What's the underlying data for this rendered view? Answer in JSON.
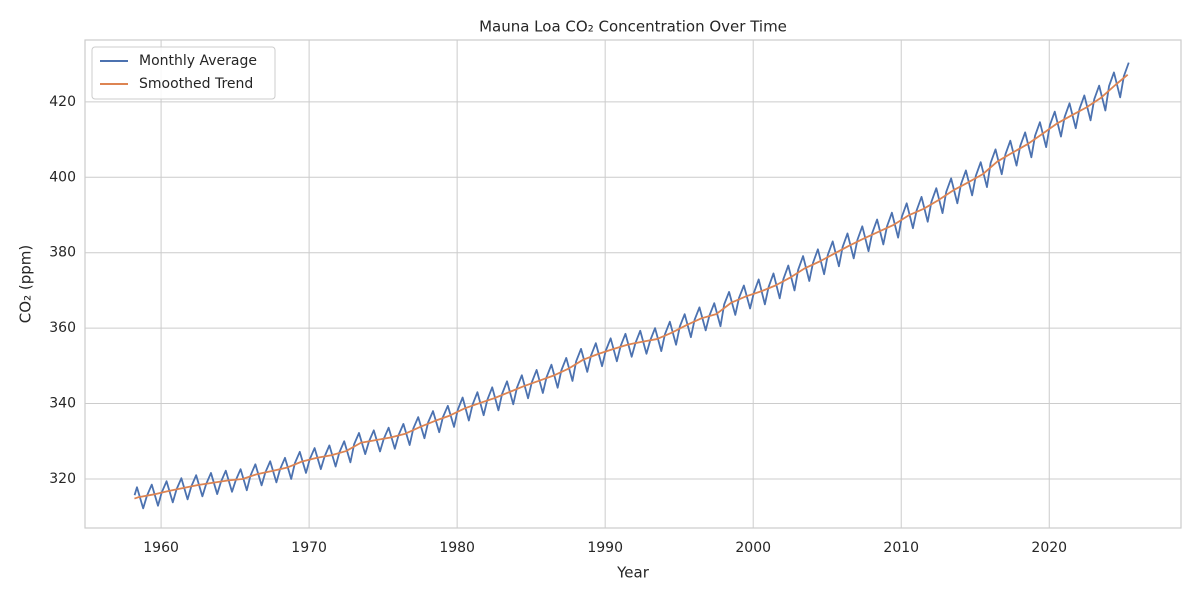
{
  "chart_data": {
    "type": "line",
    "title": "Mauna Loa CO₂ Concentration Over Time",
    "x_label": "Year",
    "y_label": "CO₂ (ppm)",
    "xlim": [
      1954.86,
      2028.9
    ],
    "xticks": [
      1960,
      1970,
      1980,
      1990,
      2000,
      2010,
      2020
    ],
    "ylim": [
      307.0,
      436.4
    ],
    "yticks": [
      320,
      340,
      360,
      380,
      400,
      420
    ],
    "grid": true,
    "legend": "upper left",
    "series": [
      {
        "name": "Monthly Average",
        "color": "#4c72b0",
        "x": [
          1958.21,
          1958.37,
          1958.79,
          1959.04,
          1959.37,
          1959.79,
          1960.04,
          1960.37,
          1960.79,
          1961.04,
          1961.37,
          1961.79,
          1962.04,
          1962.37,
          1962.79,
          1963.04,
          1963.37,
          1963.79,
          1964.04,
          1964.37,
          1964.79,
          1965.04,
          1965.37,
          1965.79,
          1966.04,
          1966.37,
          1966.79,
          1967.04,
          1967.37,
          1967.79,
          1968.04,
          1968.37,
          1968.79,
          1969.04,
          1969.37,
          1969.79,
          1970.04,
          1970.37,
          1970.79,
          1971.04,
          1971.37,
          1971.79,
          1972.04,
          1972.37,
          1972.79,
          1973.04,
          1973.37,
          1973.79,
          1974.04,
          1974.37,
          1974.79,
          1975.04,
          1975.37,
          1975.79,
          1976.04,
          1976.37,
          1976.79,
          1977.04,
          1977.37,
          1977.79,
          1978.04,
          1978.37,
          1978.79,
          1979.04,
          1979.37,
          1979.79,
          1980.04,
          1980.37,
          1980.79,
          1981.04,
          1981.37,
          1981.79,
          1982.04,
          1982.37,
          1982.79,
          1983.04,
          1983.37,
          1983.79,
          1984.04,
          1984.37,
          1984.79,
          1985.04,
          1985.37,
          1985.79,
          1986.04,
          1986.37,
          1986.79,
          1987.04,
          1987.37,
          1987.79,
          1988.04,
          1988.37,
          1988.79,
          1989.04,
          1989.37,
          1989.79,
          1990.04,
          1990.37,
          1990.79,
          1991.04,
          1991.37,
          1991.79,
          1992.04,
          1992.37,
          1992.79,
          1993.04,
          1993.37,
          1993.79,
          1994.04,
          1994.37,
          1994.79,
          1995.04,
          1995.37,
          1995.79,
          1996.04,
          1996.37,
          1996.79,
          1997.04,
          1997.37,
          1997.79,
          1998.04,
          1998.37,
          1998.79,
          1999.04,
          1999.37,
          1999.79,
          2000.04,
          2000.37,
          2000.79,
          2001.04,
          2001.37,
          2001.79,
          2002.04,
          2002.37,
          2002.79,
          2003.04,
          2003.37,
          2003.79,
          2004.04,
          2004.37,
          2004.79,
          2005.04,
          2005.37,
          2005.79,
          2006.04,
          2006.37,
          2006.79,
          2007.04,
          2007.37,
          2007.79,
          2008.04,
          2008.37,
          2008.79,
          2009.04,
          2009.37,
          2009.79,
          2010.04,
          2010.37,
          2010.79,
          2011.04,
          2011.37,
          2011.79,
          2012.04,
          2012.37,
          2012.79,
          2013.04,
          2013.37,
          2013.79,
          2014.04,
          2014.37,
          2014.79,
          2015.04,
          2015.37,
          2015.79,
          2016.04,
          2016.37,
          2016.79,
          2017.04,
          2017.37,
          2017.79,
          2018.04,
          2018.37,
          2018.79,
          2019.04,
          2019.37,
          2019.79,
          2020.04,
          2020.37,
          2020.79,
          2021.04,
          2021.37,
          2021.79,
          2022.04,
          2022.37,
          2022.79,
          2023.04,
          2023.37,
          2023.79,
          2024.04,
          2024.37,
          2024.79,
          2025.04,
          2025.37
        ],
        "values": [
          315.7,
          317.8,
          312.2,
          315.5,
          318.5,
          312.9,
          316.4,
          319.4,
          313.8,
          317.2,
          320.2,
          314.6,
          318.0,
          321.0,
          315.4,
          318.6,
          321.6,
          316.0,
          319.2,
          322.2,
          316.6,
          319.6,
          322.6,
          317.0,
          320.9,
          323.9,
          318.3,
          321.7,
          324.7,
          319.1,
          322.6,
          325.6,
          320.0,
          324.2,
          327.2,
          321.6,
          325.2,
          328.2,
          322.6,
          325.9,
          328.9,
          323.3,
          327.0,
          330.0,
          324.4,
          329.2,
          332.2,
          326.6,
          329.9,
          332.9,
          327.3,
          330.6,
          333.6,
          328.0,
          331.6,
          334.6,
          329.0,
          333.4,
          336.4,
          330.8,
          335.0,
          338.0,
          332.4,
          336.4,
          339.4,
          333.8,
          338.3,
          341.6,
          335.5,
          339.7,
          343.0,
          336.9,
          341.0,
          344.3,
          338.2,
          342.6,
          345.9,
          339.8,
          344.2,
          347.5,
          341.4,
          345.6,
          348.9,
          342.8,
          347.0,
          350.3,
          344.2,
          348.8,
          352.1,
          346.0,
          351.2,
          354.5,
          348.4,
          352.7,
          356.0,
          349.9,
          354.0,
          357.3,
          351.2,
          355.2,
          358.5,
          352.4,
          356.0,
          359.3,
          353.2,
          356.7,
          360.0,
          353.9,
          358.4,
          361.7,
          355.6,
          360.4,
          363.7,
          357.6,
          362.2,
          365.5,
          359.4,
          363.3,
          366.6,
          360.5,
          366.3,
          369.6,
          363.5,
          368.0,
          371.3,
          365.2,
          369.3,
          372.9,
          366.3,
          370.9,
          374.5,
          367.9,
          373.0,
          376.6,
          370.0,
          375.5,
          379.1,
          372.5,
          377.3,
          380.9,
          374.3,
          379.4,
          383.0,
          376.4,
          381.5,
          385.1,
          378.5,
          383.4,
          387.0,
          380.4,
          385.2,
          388.8,
          382.2,
          387.0,
          390.6,
          384.0,
          389.5,
          393.1,
          386.5,
          391.2,
          394.8,
          388.2,
          393.5,
          397.1,
          390.5,
          396.1,
          399.7,
          393.1,
          398.2,
          401.8,
          395.2,
          400.4,
          404.0,
          397.4,
          403.8,
          407.4,
          400.8,
          406.1,
          409.7,
          403.1,
          408.3,
          411.9,
          405.3,
          411.0,
          414.6,
          408.0,
          413.8,
          417.4,
          410.8,
          416.0,
          419.6,
          413.0,
          418.1,
          421.7,
          415.1,
          420.7,
          424.3,
          417.7,
          424.2,
          427.8,
          421.2,
          426.8,
          430.4
        ]
      },
      {
        "name": "Smoothed Trend",
        "color": "#dd8452",
        "x": [
          1958.2,
          1958.5,
          1959.5,
          1960.5,
          1961.5,
          1962.5,
          1963.5,
          1964.5,
          1965.5,
          1966.5,
          1967.5,
          1968.5,
          1969.5,
          1970.5,
          1971.5,
          1972.5,
          1973.5,
          1974.5,
          1975.5,
          1976.5,
          1977.5,
          1978.5,
          1979.5,
          1980.5,
          1981.5,
          1982.5,
          1983.5,
          1984.5,
          1985.5,
          1986.5,
          1987.5,
          1988.5,
          1989.5,
          1990.5,
          1991.5,
          1992.5,
          1993.5,
          1994.5,
          1995.5,
          1996.5,
          1997.5,
          1998.5,
          1999.5,
          2000.5,
          2001.5,
          2002.5,
          2003.5,
          2004.5,
          2005.5,
          2006.5,
          2007.5,
          2008.5,
          2009.5,
          2010.5,
          2011.5,
          2012.5,
          2013.5,
          2014.5,
          2015.5,
          2016.5,
          2017.5,
          2018.5,
          2019.5,
          2020.5,
          2021.5,
          2022.5,
          2023.5,
          2024.5,
          2025.3
        ],
        "values": [
          314.8,
          315.2,
          315.9,
          316.8,
          317.6,
          318.4,
          319.0,
          319.6,
          320.0,
          321.3,
          322.1,
          323.0,
          324.6,
          325.6,
          326.3,
          327.4,
          329.6,
          330.3,
          331.0,
          332.0,
          333.8,
          335.4,
          336.8,
          338.7,
          340.1,
          341.4,
          343.0,
          344.6,
          346.0,
          347.4,
          349.2,
          351.6,
          353.1,
          354.4,
          355.6,
          356.4,
          357.1,
          358.8,
          360.8,
          362.6,
          363.7,
          366.7,
          368.4,
          369.7,
          371.3,
          373.4,
          375.9,
          377.7,
          379.8,
          381.9,
          383.8,
          385.6,
          387.4,
          389.9,
          391.6,
          393.9,
          396.5,
          398.6,
          400.8,
          404.2,
          406.5,
          408.7,
          411.4,
          414.2,
          416.4,
          418.5,
          421.1,
          424.6,
          427.2
        ]
      }
    ]
  }
}
